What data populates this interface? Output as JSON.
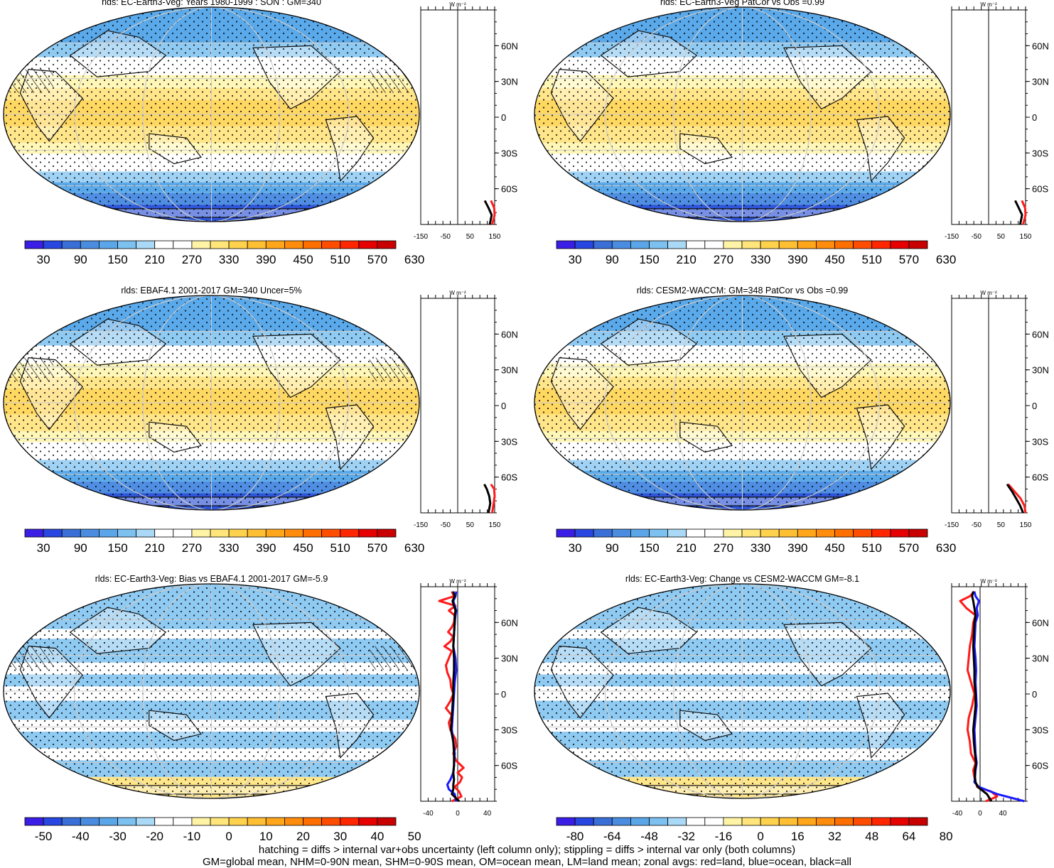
{
  "units_label": "W m⁻²",
  "colors": {
    "land_line": "#ff1a1a",
    "ocean_line": "#1a1aff",
    "all_line": "#000000",
    "grid": "#cccccc",
    "coast": "#111111"
  },
  "footnotes": [
    "hatching = diffs > internal var+obs uncertainty (left column only); stippling = diffs > internal var only (both columns)",
    "GM=global mean, NHM=0-90N mean, SHM=0-90S mean, OM=ocean mean, LM=land mean; zonal avgs: red=land, blue=ocean, black=all"
  ],
  "chart_data": [
    {
      "type": "heatmap",
      "title": "rlds: EC-Earth3-Veg: Years 1980-1999 : SON : GM=340",
      "field": "absolute",
      "colorbar": {
        "labels": [
          "30",
          "90",
          "150",
          "210",
          "270",
          "330",
          "390",
          "450",
          "510",
          "570",
          "630"
        ],
        "colors": [
          "#3b1ee6",
          "#2846e0",
          "#3a6fd8",
          "#4a8de0",
          "#5aa6e8",
          "#7cc1ef",
          "#a9d9f6",
          "#ffffff",
          "#ffffff",
          "#fff3a6",
          "#ffe57a",
          "#ffd24d",
          "#ffbf33",
          "#ffa61a",
          "#ff8c0d",
          "#ff6f00",
          "#ff4d00",
          "#ff2600",
          "#e60000",
          "#c80000"
        ]
      },
      "zonal_profile": {
        "xticks": [
          "-150",
          "-50",
          "50",
          "150"
        ],
        "xlim": [
          -150,
          150
        ],
        "yticks": [
          "60N",
          "30N",
          "0",
          "30S",
          "60S"
        ],
        "series": [
          {
            "name": "land",
            "lat": [
              -90,
              -82,
              -76,
              -70
            ],
            "values": [
              140,
              150,
              148,
              135
            ]
          },
          {
            "name": "all",
            "lat": [
              -90,
              -82,
              -76,
              -70
            ],
            "values": [
              130,
              138,
              125,
              110
            ]
          }
        ]
      }
    },
    {
      "type": "heatmap",
      "title": "rlds: EC-Earth3-Veg PatCor vs Obs =0.99",
      "field": "absolute",
      "colorbar": {
        "labels": [
          "30",
          "90",
          "150",
          "210",
          "270",
          "330",
          "390",
          "450",
          "510",
          "570",
          "630"
        ],
        "colors": [
          "#3b1ee6",
          "#2846e0",
          "#3a6fd8",
          "#4a8de0",
          "#5aa6e8",
          "#7cc1ef",
          "#a9d9f6",
          "#ffffff",
          "#ffffff",
          "#fff3a6",
          "#ffe57a",
          "#ffd24d",
          "#ffbf33",
          "#ffa61a",
          "#ff8c0d",
          "#ff6f00",
          "#ff4d00",
          "#ff2600",
          "#e60000",
          "#c80000"
        ]
      },
      "zonal_profile": {
        "xticks": [
          "-150",
          "-50",
          "50",
          "150"
        ],
        "xlim": [
          -150,
          150
        ],
        "yticks": [
          "60N",
          "30N",
          "0",
          "30S",
          "60S"
        ],
        "series": [
          {
            "name": "land",
            "lat": [
              -90,
              -82,
              -76,
              -70
            ],
            "values": [
              140,
              150,
              148,
              135
            ]
          },
          {
            "name": "all",
            "lat": [
              -90,
              -82,
              -76,
              -70
            ],
            "values": [
              128,
              136,
              122,
              108
            ]
          }
        ]
      }
    },
    {
      "type": "heatmap",
      "title": "rlds: EBAF4.1 2001-2017 GM=340 Uncer=5%",
      "field": "absolute",
      "colorbar": {
        "labels": [
          "30",
          "90",
          "150",
          "210",
          "270",
          "330",
          "390",
          "450",
          "510",
          "570",
          "630"
        ],
        "colors": [
          "#3b1ee6",
          "#2846e0",
          "#3a6fd8",
          "#4a8de0",
          "#5aa6e8",
          "#7cc1ef",
          "#a9d9f6",
          "#ffffff",
          "#ffffff",
          "#fff3a6",
          "#ffe57a",
          "#ffd24d",
          "#ffbf33",
          "#ffa61a",
          "#ff8c0d",
          "#ff6f00",
          "#ff4d00",
          "#ff2600",
          "#e60000",
          "#c80000"
        ]
      },
      "zonal_profile": {
        "xticks": [
          "-150",
          "-50",
          "50",
          "150"
        ],
        "xlim": [
          -150,
          150
        ],
        "yticks": [
          "60N",
          "30N",
          "0",
          "30S",
          "60S"
        ],
        "series": [
          {
            "name": "land",
            "lat": [
              -90,
              -82,
              -76,
              -70,
              -66
            ],
            "values": [
              140,
              146,
              150,
              148,
              135
            ]
          },
          {
            "name": "all",
            "lat": [
              -90,
              -82,
              -76,
              -70,
              -66
            ],
            "values": [
              125,
              132,
              128,
              118,
              108
            ]
          }
        ]
      }
    },
    {
      "type": "heatmap",
      "title": "rlds: CESM2-WACCM: GM=348 PatCor vs Obs =0.99",
      "field": "absolute",
      "colorbar": {
        "labels": [
          "30",
          "90",
          "150",
          "210",
          "270",
          "330",
          "390",
          "450",
          "510",
          "570",
          "630"
        ],
        "colors": [
          "#3b1ee6",
          "#2846e0",
          "#3a6fd8",
          "#4a8de0",
          "#5aa6e8",
          "#7cc1ef",
          "#a9d9f6",
          "#ffffff",
          "#ffffff",
          "#fff3a6",
          "#ffe57a",
          "#ffd24d",
          "#ffbf33",
          "#ffa61a",
          "#ff8c0d",
          "#ff6f00",
          "#ff4d00",
          "#ff2600",
          "#e60000",
          "#c80000"
        ]
      },
      "zonal_profile": {
        "xticks": [
          "-150",
          "-50",
          "50",
          "150"
        ],
        "xlim": [
          -150,
          150
        ],
        "yticks": [
          "60N",
          "30N",
          "0",
          "30S",
          "60S"
        ],
        "series": [
          {
            "name": "land",
            "lat": [
              -90,
              -84,
              -78,
              -72,
              -66
            ],
            "values": [
              150,
              145,
              130,
              105,
              80
            ]
          },
          {
            "name": "all",
            "lat": [
              -90,
              -84,
              -78,
              -72,
              -66
            ],
            "values": [
              140,
              128,
              112,
              95,
              75
            ]
          }
        ]
      }
    },
    {
      "type": "heatmap",
      "title": "rlds: EC-Earth3-Veg: Bias vs EBAF4.1 2001-2017  GM=-5.9",
      "field": "difference",
      "colorbar": {
        "labels": [
          "-50",
          "-40",
          "-30",
          "-20",
          "-10",
          "0",
          "10",
          "20",
          "30",
          "40",
          "50"
        ],
        "colors": [
          "#3b1ee6",
          "#2846e0",
          "#3a6fd8",
          "#4a8de0",
          "#5aa6e8",
          "#7cc1ef",
          "#a9d9f6",
          "#ffffff",
          "#ffffff",
          "#fff3a6",
          "#ffe57a",
          "#ffd24d",
          "#ffbf33",
          "#ffa61a",
          "#ff8c0d",
          "#ff6f00",
          "#ff4d00",
          "#ff2600",
          "#e60000",
          "#c80000"
        ]
      },
      "zonal_profile": {
        "xticks": [
          "-40",
          "0",
          "40"
        ],
        "xlim": [
          -50,
          50
        ],
        "yticks": [
          "60N",
          "30N",
          "0",
          "30S",
          "60S"
        ],
        "series": [
          {
            "name": "land",
            "lat": [
              -90,
              -86,
              -82,
              -78,
              -74,
              -70,
              -66,
              -62,
              -56,
              -50,
              -44,
              -38,
              -30,
              -24,
              -18,
              -12,
              -6,
              0,
              6,
              12,
              18,
              24,
              30,
              36,
              40,
              44,
              48,
              52,
              56,
              60,
              66,
              70,
              74,
              78,
              82,
              86
            ],
            "values": [
              -8,
              5,
              2,
              -4,
              3,
              6,
              0,
              8,
              -2,
              -6,
              -2,
              -3,
              -10,
              -12,
              -8,
              -16,
              -10,
              -6,
              -9,
              -10,
              -14,
              -16,
              -12,
              -8,
              -18,
              -10,
              -6,
              -13,
              -8,
              -5,
              -4,
              -12,
              -3,
              -25,
              -5,
              -8
            ]
          },
          {
            "name": "ocean",
            "lat": [
              -90,
              -84,
              -80,
              -76,
              -72,
              -66,
              -60,
              -50,
              -40,
              -30,
              -20,
              -10,
              0,
              10,
              20,
              30,
              40,
              50,
              60,
              66,
              70,
              74,
              78,
              82,
              86
            ],
            "values": [
              -2,
              -4,
              -12,
              -14,
              -10,
              -6,
              -5,
              -4,
              -6,
              -8,
              -7,
              -6,
              -5,
              -4,
              -2,
              -3,
              -6,
              -5,
              -4,
              -3,
              -2,
              -4,
              -6,
              -3,
              -2
            ]
          },
          {
            "name": "all",
            "lat": [
              -90,
              -84,
              -80,
              -76,
              -72,
              -66,
              -60,
              -50,
              -40,
              -30,
              -20,
              -10,
              0,
              10,
              20,
              30,
              40,
              50,
              60,
              66,
              70,
              74,
              78,
              82,
              86
            ],
            "values": [
              2,
              -8,
              -6,
              -6,
              -5,
              -6,
              -5,
              -5,
              -6,
              -9,
              -8,
              -7,
              -6,
              -6,
              -5,
              -5,
              -6,
              -5,
              -4,
              -4,
              -3,
              -5,
              -7,
              -4,
              -6
            ]
          }
        ]
      }
    },
    {
      "type": "heatmap",
      "title": "rlds: EC-Earth3-Veg: Change vs CESM2-WACCM GM=-8.1",
      "field": "difference",
      "colorbar": {
        "labels": [
          "-80",
          "-64",
          "-48",
          "-32",
          "-16",
          "0",
          "16",
          "32",
          "48",
          "64",
          "80"
        ],
        "colors": [
          "#3b1ee6",
          "#2846e0",
          "#3a6fd8",
          "#4a8de0",
          "#5aa6e8",
          "#7cc1ef",
          "#a9d9f6",
          "#ffffff",
          "#ffffff",
          "#fff3a6",
          "#ffe57a",
          "#ffd24d",
          "#ffbf33",
          "#ffa61a",
          "#ff8c0d",
          "#ff6f00",
          "#ff4d00",
          "#ff2600",
          "#e60000",
          "#c80000"
        ]
      },
      "zonal_profile": {
        "xticks": [
          "-40",
          "0",
          "40"
        ],
        "xlim": [
          -50,
          80
        ],
        "yticks": [
          "60N",
          "30N",
          "0",
          "30S",
          "60S"
        ],
        "series": [
          {
            "name": "land",
            "lat": [
              -90,
              -86,
              -82,
              -78,
              -74,
              -70,
              -64,
              -58,
              -50,
              -40,
              -30,
              -20,
              -10,
              0,
              10,
              20,
              30,
              40,
              50,
              60,
              66,
              72,
              78,
              82,
              86
            ],
            "values": [
              10,
              30,
              20,
              -5,
              -8,
              -10,
              -12,
              -8,
              -16,
              -18,
              -22,
              -20,
              -14,
              -10,
              -16,
              -22,
              -20,
              -18,
              -14,
              -12,
              -8,
              -24,
              -35,
              -18,
              -10
            ]
          },
          {
            "name": "ocean",
            "lat": [
              -90,
              -84,
              -78,
              -74,
              -70,
              -64,
              -58,
              -50,
              -40,
              -30,
              -20,
              -10,
              0,
              10,
              20,
              30,
              40,
              50,
              60,
              66,
              72,
              78,
              82,
              86
            ],
            "values": [
              78,
              30,
              -2,
              -10,
              -9,
              -8,
              -6,
              -8,
              -9,
              -10,
              -8,
              -6,
              -7,
              -8,
              -7,
              -8,
              -10,
              -9,
              -8,
              -4,
              -6,
              -2,
              -8,
              -10
            ]
          },
          {
            "name": "all",
            "lat": [
              -90,
              -84,
              -78,
              -74,
              -70,
              -64,
              -58,
              -50,
              -40,
              -30,
              -20,
              -10,
              0,
              10,
              20,
              30,
              40,
              50,
              60,
              66,
              72,
              78,
              82,
              86
            ],
            "values": [
              20,
              12,
              -4,
              -8,
              -9,
              -9,
              -7,
              -9,
              -11,
              -12,
              -10,
              -8,
              -8,
              -10,
              -10,
              -11,
              -12,
              -11,
              -10,
              -8,
              -10,
              -12,
              -14,
              -12
            ]
          }
        ]
      }
    }
  ]
}
